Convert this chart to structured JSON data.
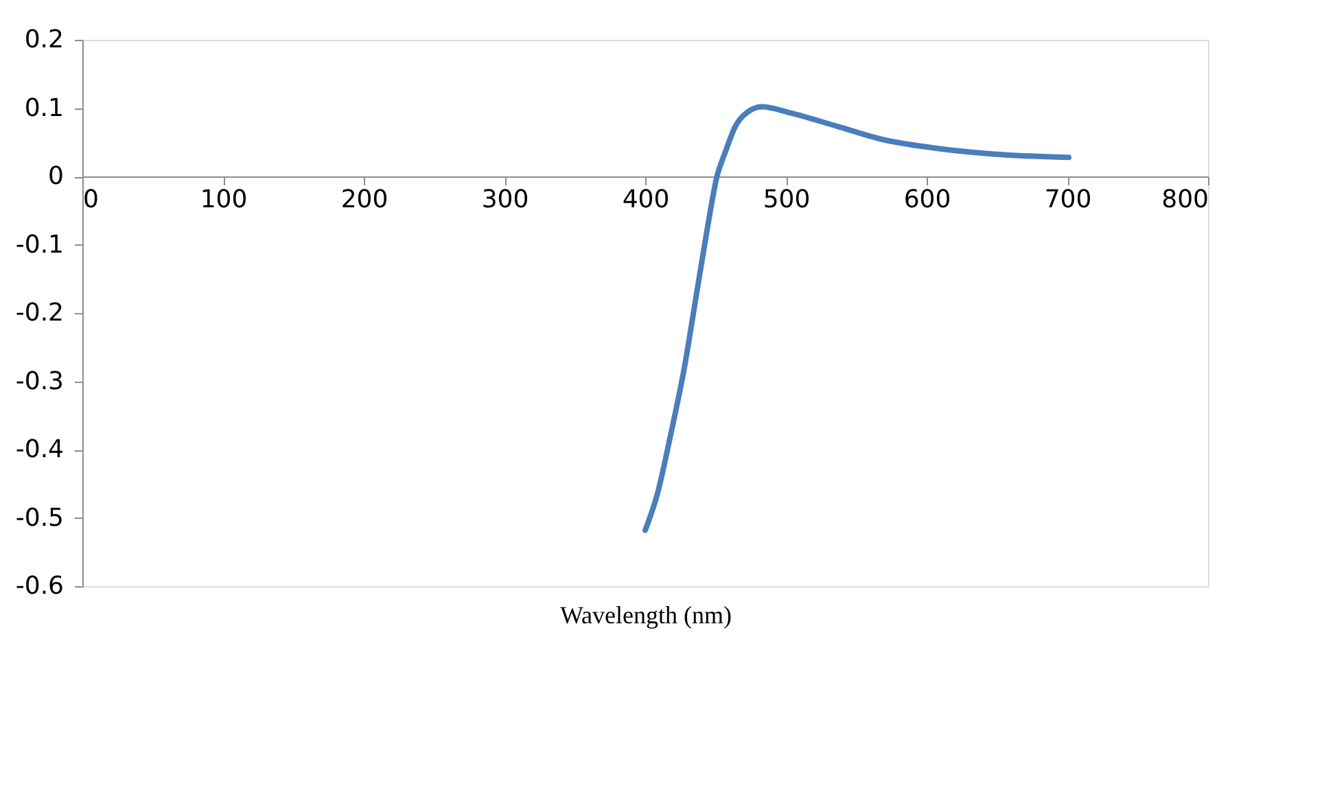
{
  "chart_data": {
    "type": "line",
    "xlabel": "Wavelength (nm)",
    "x": [
      400,
      408.5,
      418,
      428,
      436,
      444,
      451,
      457,
      464,
      472,
      483,
      503,
      537,
      571,
      604,
      646,
      701
    ],
    "series": [
      {
        "color": "#4a7ebb",
        "values": [
          -0.518,
          -0.466,
          -0.379,
          -0.278,
          -0.178,
          -0.078,
          0.0,
          0.036,
          0.073,
          0.093,
          0.102,
          0.093,
          0.073,
          0.053,
          0.042,
          0.033,
          0.028
        ]
      }
    ],
    "xlim": [
      0,
      800
    ],
    "xticks": [
      0,
      100,
      200,
      300,
      400,
      500,
      600,
      700,
      800
    ],
    "ylim": [
      -0.6,
      0.2
    ],
    "yticks": [
      -0.6,
      -0.5,
      -0.4,
      -0.3,
      -0.2,
      -0.1,
      0,
      0.1,
      0.2
    ],
    "grid": false,
    "marker": "none",
    "line_style": "solid"
  }
}
